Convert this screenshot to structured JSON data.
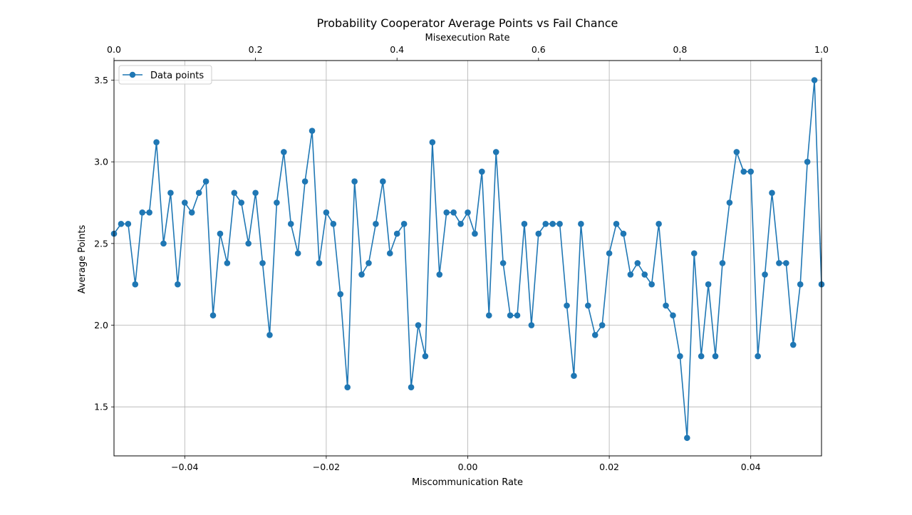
{
  "chart_data": {
    "type": "line",
    "title": "Probability Cooperator Average Points vs Fail Chance",
    "xlabel": "Miscommunication Rate",
    "ylabel": "Average Points",
    "top_xlabel": "Misexecution Rate",
    "xlim": [
      -0.05,
      0.05
    ],
    "ylim": [
      1.2,
      3.62
    ],
    "top_xlim": [
      0.0,
      1.0
    ],
    "x_ticks": [
      -0.04,
      -0.02,
      0.0,
      0.02,
      0.04
    ],
    "x_tick_labels": [
      "−0.04",
      "−0.02",
      "0.00",
      "0.02",
      "0.04"
    ],
    "y_ticks": [
      1.5,
      2.0,
      2.5,
      3.0,
      3.5
    ],
    "y_tick_labels": [
      "1.5",
      "2.0",
      "2.5",
      "3.0",
      "3.5"
    ],
    "top_x_ticks": [
      0.0,
      0.2,
      0.4,
      0.6,
      0.8,
      1.0
    ],
    "top_x_tick_labels": [
      "0.0",
      "0.2",
      "0.4",
      "0.6",
      "0.8",
      "1.0"
    ],
    "grid": true,
    "legend_position": "top-left",
    "color": "#1f77b4",
    "series": [
      {
        "name": "Data points",
        "x": [
          -0.05,
          -0.049,
          -0.048,
          -0.047,
          -0.046,
          -0.045,
          -0.044,
          -0.043,
          -0.042,
          -0.041,
          -0.04,
          -0.039,
          -0.038,
          -0.037,
          -0.036,
          -0.035,
          -0.034,
          -0.033,
          -0.032,
          -0.031,
          -0.03,
          -0.029,
          -0.028,
          -0.027,
          -0.026,
          -0.025,
          -0.024,
          -0.023,
          -0.022,
          -0.021,
          -0.02,
          -0.019,
          -0.018,
          -0.017,
          -0.016,
          -0.015,
          -0.014,
          -0.013,
          -0.012,
          -0.011,
          -0.01,
          -0.009,
          -0.008,
          -0.007,
          -0.006,
          -0.005,
          -0.004,
          -0.003,
          -0.002,
          -0.001,
          0.0,
          0.001,
          0.002,
          0.003,
          0.004,
          0.005,
          0.006,
          0.007,
          0.008,
          0.009,
          0.01,
          0.011,
          0.012,
          0.013,
          0.014,
          0.015,
          0.016,
          0.017,
          0.018,
          0.019,
          0.02,
          0.021,
          0.022,
          0.023,
          0.024,
          0.025,
          0.026,
          0.027,
          0.028,
          0.029,
          0.03,
          0.031,
          0.032,
          0.033,
          0.034,
          0.035,
          0.036,
          0.037,
          0.038,
          0.039,
          0.04,
          0.041,
          0.042,
          0.043,
          0.044,
          0.045,
          0.046,
          0.047,
          0.048,
          0.049,
          0.05
        ],
        "y": [
          2.56,
          2.62,
          2.62,
          2.25,
          2.69,
          2.69,
          3.12,
          2.5,
          2.81,
          2.25,
          2.75,
          2.69,
          2.81,
          2.88,
          2.06,
          2.56,
          2.38,
          2.81,
          2.75,
          2.5,
          2.81,
          2.38,
          1.94,
          2.75,
          3.06,
          2.62,
          2.44,
          2.88,
          3.19,
          2.38,
          2.69,
          2.62,
          2.19,
          1.62,
          2.88,
          2.31,
          2.38,
          2.62,
          2.88,
          2.44,
          2.56,
          2.62,
          1.62,
          2.0,
          1.81,
          3.12,
          2.31,
          2.69,
          2.69,
          2.62,
          2.69,
          2.56,
          2.94,
          2.06,
          3.06,
          2.38,
          2.06,
          2.06,
          2.62,
          2.0,
          2.56,
          2.62,
          2.62,
          2.62,
          2.12,
          1.69,
          2.62,
          2.12,
          1.94,
          2.0,
          2.44,
          2.62,
          2.56,
          2.31,
          2.38,
          2.31,
          2.25,
          2.62,
          2.12,
          2.06,
          1.81,
          1.31,
          2.44,
          1.81,
          2.25,
          1.81,
          2.38,
          2.75,
          3.06,
          2.94,
          2.94,
          1.81,
          2.31,
          2.81,
          2.38,
          2.38,
          1.88,
          2.25,
          3.0,
          3.5,
          2.25
        ]
      }
    ]
  }
}
